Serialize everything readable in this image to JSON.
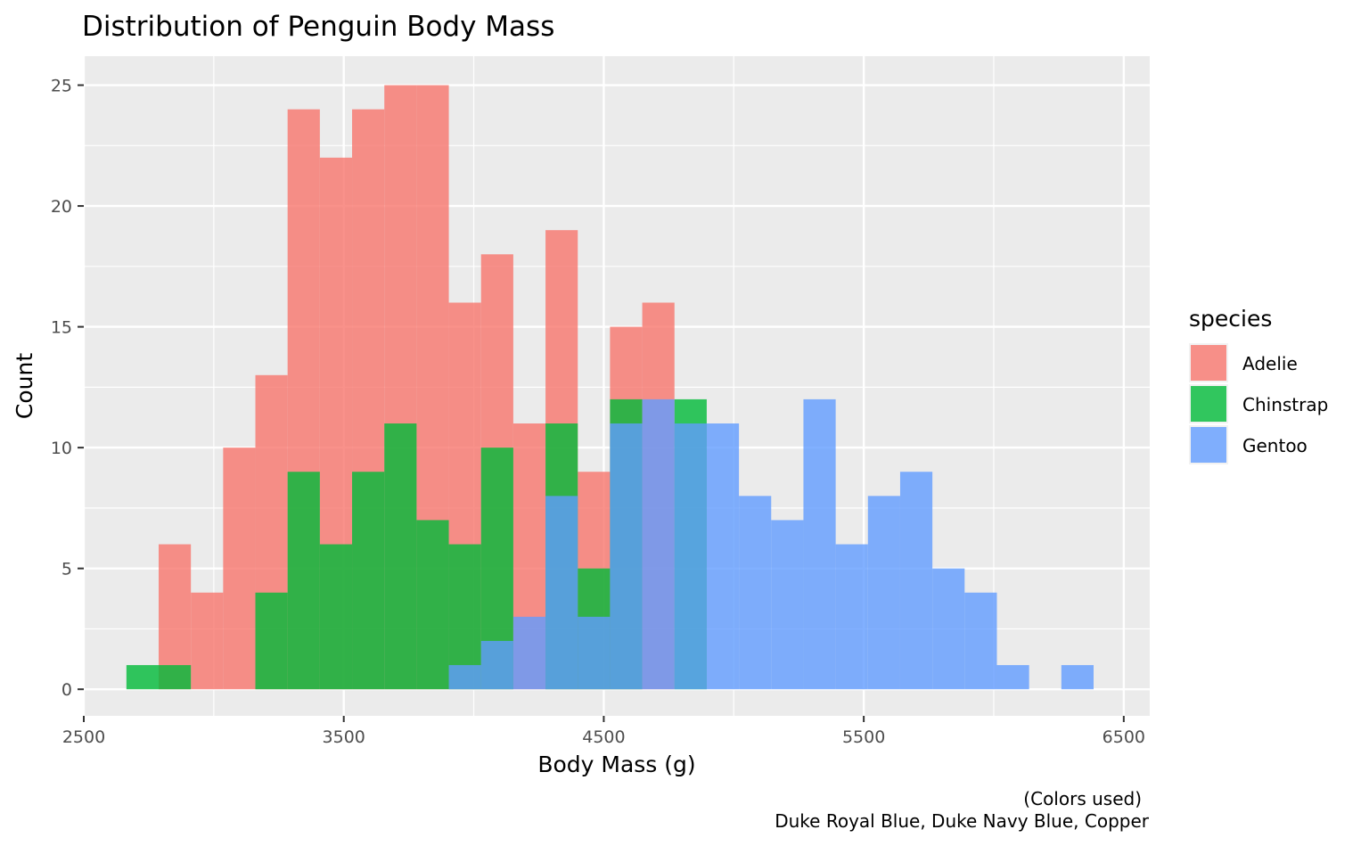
{
  "chart_data": {
    "type": "bar",
    "title": "Distribution of Penguin Body Mass",
    "xlabel": "Body Mass (g)",
    "ylabel": "Count",
    "caption_lines": [
      "(Colors used)",
      "Duke Royal Blue, Duke Navy Blue, Copper"
    ],
    "xlim": [
      2500,
      6600
    ],
    "ylim": [
      -1.1,
      26.2
    ],
    "x_ticks": [
      2500,
      3500,
      4500,
      5500,
      6500
    ],
    "y_ticks": [
      0,
      5,
      10,
      15,
      20,
      25
    ],
    "bin_width": 124,
    "grid": true,
    "legend": {
      "title": "species",
      "position": "right"
    },
    "series": [
      {
        "name": "Adelie",
        "color": "#F8766D",
        "bins": [
          [
            2850,
            6
          ],
          [
            2974,
            4
          ],
          [
            3098,
            10
          ],
          [
            3222,
            13
          ],
          [
            3346,
            24
          ],
          [
            3470,
            22
          ],
          [
            3594,
            24
          ],
          [
            3718,
            25
          ],
          [
            3842,
            25
          ],
          [
            3966,
            16
          ],
          [
            4090,
            18
          ],
          [
            4214,
            11
          ],
          [
            4338,
            19
          ],
          [
            4462,
            9
          ],
          [
            4586,
            15
          ],
          [
            4710,
            16
          ]
        ]
      },
      {
        "name": "Chinstrap",
        "color": "#00BA38",
        "bins": [
          [
            2726,
            1
          ],
          [
            2850,
            1
          ],
          [
            3222,
            4
          ],
          [
            3346,
            9
          ],
          [
            3470,
            6
          ],
          [
            3594,
            9
          ],
          [
            3718,
            11
          ],
          [
            3842,
            7
          ],
          [
            3966,
            6
          ],
          [
            4090,
            10
          ],
          [
            4338,
            11
          ],
          [
            4462,
            5
          ],
          [
            4586,
            12
          ],
          [
            4834,
            12
          ]
        ]
      },
      {
        "name": "Gentoo",
        "color": "#619CFF",
        "bins": [
          [
            3966,
            1
          ],
          [
            4090,
            2
          ],
          [
            4214,
            3
          ],
          [
            4338,
            8
          ],
          [
            4462,
            3
          ],
          [
            4586,
            11
          ],
          [
            4710,
            12
          ],
          [
            4834,
            11
          ],
          [
            4958,
            11
          ],
          [
            5082,
            8
          ],
          [
            5206,
            7
          ],
          [
            5330,
            12
          ],
          [
            5454,
            6
          ],
          [
            5578,
            8
          ],
          [
            5702,
            9
          ],
          [
            5826,
            5
          ],
          [
            5950,
            4
          ],
          [
            6074,
            1
          ],
          [
            6322,
            1
          ]
        ]
      }
    ]
  }
}
